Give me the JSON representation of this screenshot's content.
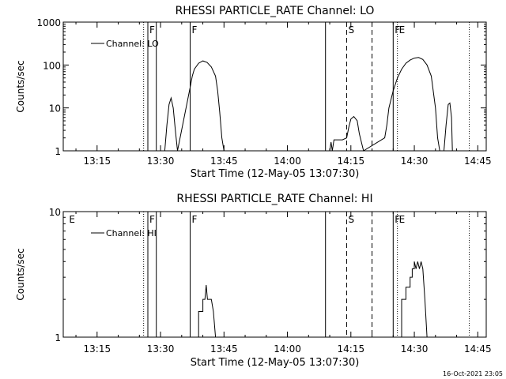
{
  "footer_timestamp": "16-Oct-2021 23:05",
  "chart_data": [
    {
      "type": "line",
      "title": "RHESSI PARTICLE_RATE Channel: LO",
      "xlabel": "Start Time (12-May-05 13:07:30)",
      "ylabel": "Counts/sec",
      "yscale": "log",
      "xlim": [
        "13:07:30",
        "14:47:30"
      ],
      "ylim": [
        1,
        1000
      ],
      "x_ticks": [
        "13:15",
        "13:30",
        "13:45",
        "14:00",
        "14:15",
        "14:30",
        "14:45"
      ],
      "y_ticks": [
        "1",
        "10",
        "100",
        "1000"
      ],
      "legend": {
        "position": "top-left",
        "label": "Channel: LO"
      },
      "grid": false,
      "markers": [
        {
          "time": "13:26",
          "style": "dotted",
          "label": ""
        },
        {
          "time": "13:27",
          "style": "solid",
          "label": "F"
        },
        {
          "time": "13:29",
          "style": "solid",
          "label": ""
        },
        {
          "time": "13:37",
          "style": "solid",
          "label": "F"
        },
        {
          "time": "14:09",
          "style": "solid",
          "label": ""
        },
        {
          "time": "14:14",
          "style": "dashed",
          "label": "S"
        },
        {
          "time": "14:20",
          "style": "dashed",
          "label": ""
        },
        {
          "time": "14:25",
          "style": "solid",
          "label": "F"
        },
        {
          "time": "14:26",
          "style": "dotted",
          "label": "E"
        },
        {
          "time": "14:43",
          "style": "dotted",
          "label": ""
        }
      ],
      "series": [
        {
          "points": [
            [
              "13:31",
              1
            ],
            [
              "13:31.5",
              4
            ],
            [
              "13:32",
              12
            ],
            [
              "13:32.5",
              17
            ],
            [
              "13:33",
              10
            ],
            [
              "13:33.5",
              3
            ],
            [
              "13:34",
              1
            ],
            [
              "13:37",
              30
            ],
            [
              "13:37.5",
              55
            ],
            [
              "13:38",
              80
            ],
            [
              "13:39",
              110
            ],
            [
              "13:40",
              125
            ],
            [
              "13:41",
              115
            ],
            [
              "13:42",
              90
            ],
            [
              "13:43",
              55
            ],
            [
              "13:43.5",
              25
            ],
            [
              "13:44",
              8
            ],
            [
              "13:44.5",
              2
            ],
            [
              "13:45",
              1
            ],
            [
              "14:10",
              1
            ],
            [
              "14:10.3",
              1.6
            ],
            [
              "14:10.6",
              1
            ],
            [
              "14:11",
              1.8
            ],
            [
              "14:12",
              1.8
            ],
            [
              "14:13",
              1.8
            ],
            [
              "14:14",
              2
            ],
            [
              "14:14.5",
              3.5
            ],
            [
              "14:15",
              5.5
            ],
            [
              "14:15.7",
              6.3
            ],
            [
              "14:16.5",
              5
            ],
            [
              "14:17",
              2.5
            ],
            [
              "14:18",
              1
            ],
            [
              "14:23",
              2
            ],
            [
              "14:23.5",
              4
            ],
            [
              "14:24",
              10
            ],
            [
              "14:25",
              25
            ],
            [
              "14:26",
              50
            ],
            [
              "14:27",
              80
            ],
            [
              "14:28",
              110
            ],
            [
              "14:29",
              130
            ],
            [
              "14:30",
              145
            ],
            [
              "14:31",
              150
            ],
            [
              "14:32",
              135
            ],
            [
              "14:33",
              100
            ],
            [
              "14:34",
              55
            ],
            [
              "14:35",
              10
            ],
            [
              "14:35.5",
              2
            ],
            [
              "14:36",
              1
            ],
            [
              "14:37",
              1
            ],
            [
              "14:37.5",
              4
            ],
            [
              "14:38",
              12
            ],
            [
              "14:38.4",
              13
            ],
            [
              "14:38.8",
              6
            ],
            [
              "14:39",
              1
            ]
          ]
        }
      ]
    },
    {
      "type": "line",
      "title": "RHESSI PARTICLE_RATE Channel: HI",
      "xlabel": "Start Time (12-May-05 13:07:30)",
      "ylabel": "Counts/sec",
      "yscale": "log",
      "xlim": [
        "13:07:30",
        "14:47:30"
      ],
      "ylim": [
        1,
        10
      ],
      "x_ticks": [
        "13:15",
        "13:30",
        "13:45",
        "14:00",
        "14:15",
        "14:30",
        "14:45"
      ],
      "y_ticks": [
        "1",
        "10"
      ],
      "legend": {
        "position": "top-left",
        "label": "Channel: HI"
      },
      "grid": false,
      "markers": [
        {
          "time": "13:08",
          "style": "none",
          "label": "E"
        },
        {
          "time": "13:26",
          "style": "dotted",
          "label": ""
        },
        {
          "time": "13:27",
          "style": "solid",
          "label": "F"
        },
        {
          "time": "13:29",
          "style": "solid",
          "label": ""
        },
        {
          "time": "13:37",
          "style": "solid",
          "label": "F"
        },
        {
          "time": "14:09",
          "style": "solid",
          "label": ""
        },
        {
          "time": "14:14",
          "style": "dashed",
          "label": "S"
        },
        {
          "time": "14:20",
          "style": "dashed",
          "label": ""
        },
        {
          "time": "14:25",
          "style": "solid",
          "label": "F"
        },
        {
          "time": "14:26",
          "style": "dotted",
          "label": "E"
        },
        {
          "time": "14:43",
          "style": "dotted",
          "label": ""
        }
      ],
      "series": [
        {
          "points": [
            [
              "13:39",
              1
            ],
            [
              "13:39",
              1.6
            ],
            [
              "13:40",
              1.6
            ],
            [
              "13:40",
              2
            ],
            [
              "13:40.5",
              2
            ],
            [
              "13:40.8",
              2.6
            ],
            [
              "13:41.1",
              2
            ],
            [
              "13:42",
              2
            ],
            [
              "13:42.5",
              1.6
            ],
            [
              "13:43",
              1
            ],
            [
              "14:27",
              1
            ],
            [
              "14:27",
              2
            ],
            [
              "14:28",
              2
            ],
            [
              "14:28",
              2.5
            ],
            [
              "14:29",
              2.5
            ],
            [
              "14:29",
              3
            ],
            [
              "14:29.5",
              3
            ],
            [
              "14:29.5",
              3.5
            ],
            [
              "14:30",
              3.5
            ],
            [
              "14:30",
              4
            ],
            [
              "14:30.4",
              3.5
            ],
            [
              "14:30.8",
              4
            ],
            [
              "14:31.2",
              3.5
            ],
            [
              "14:31.6",
              4
            ],
            [
              "14:32",
              3.5
            ],
            [
              "14:32.5",
              2
            ],
            [
              "14:33",
              1
            ]
          ]
        }
      ]
    }
  ]
}
